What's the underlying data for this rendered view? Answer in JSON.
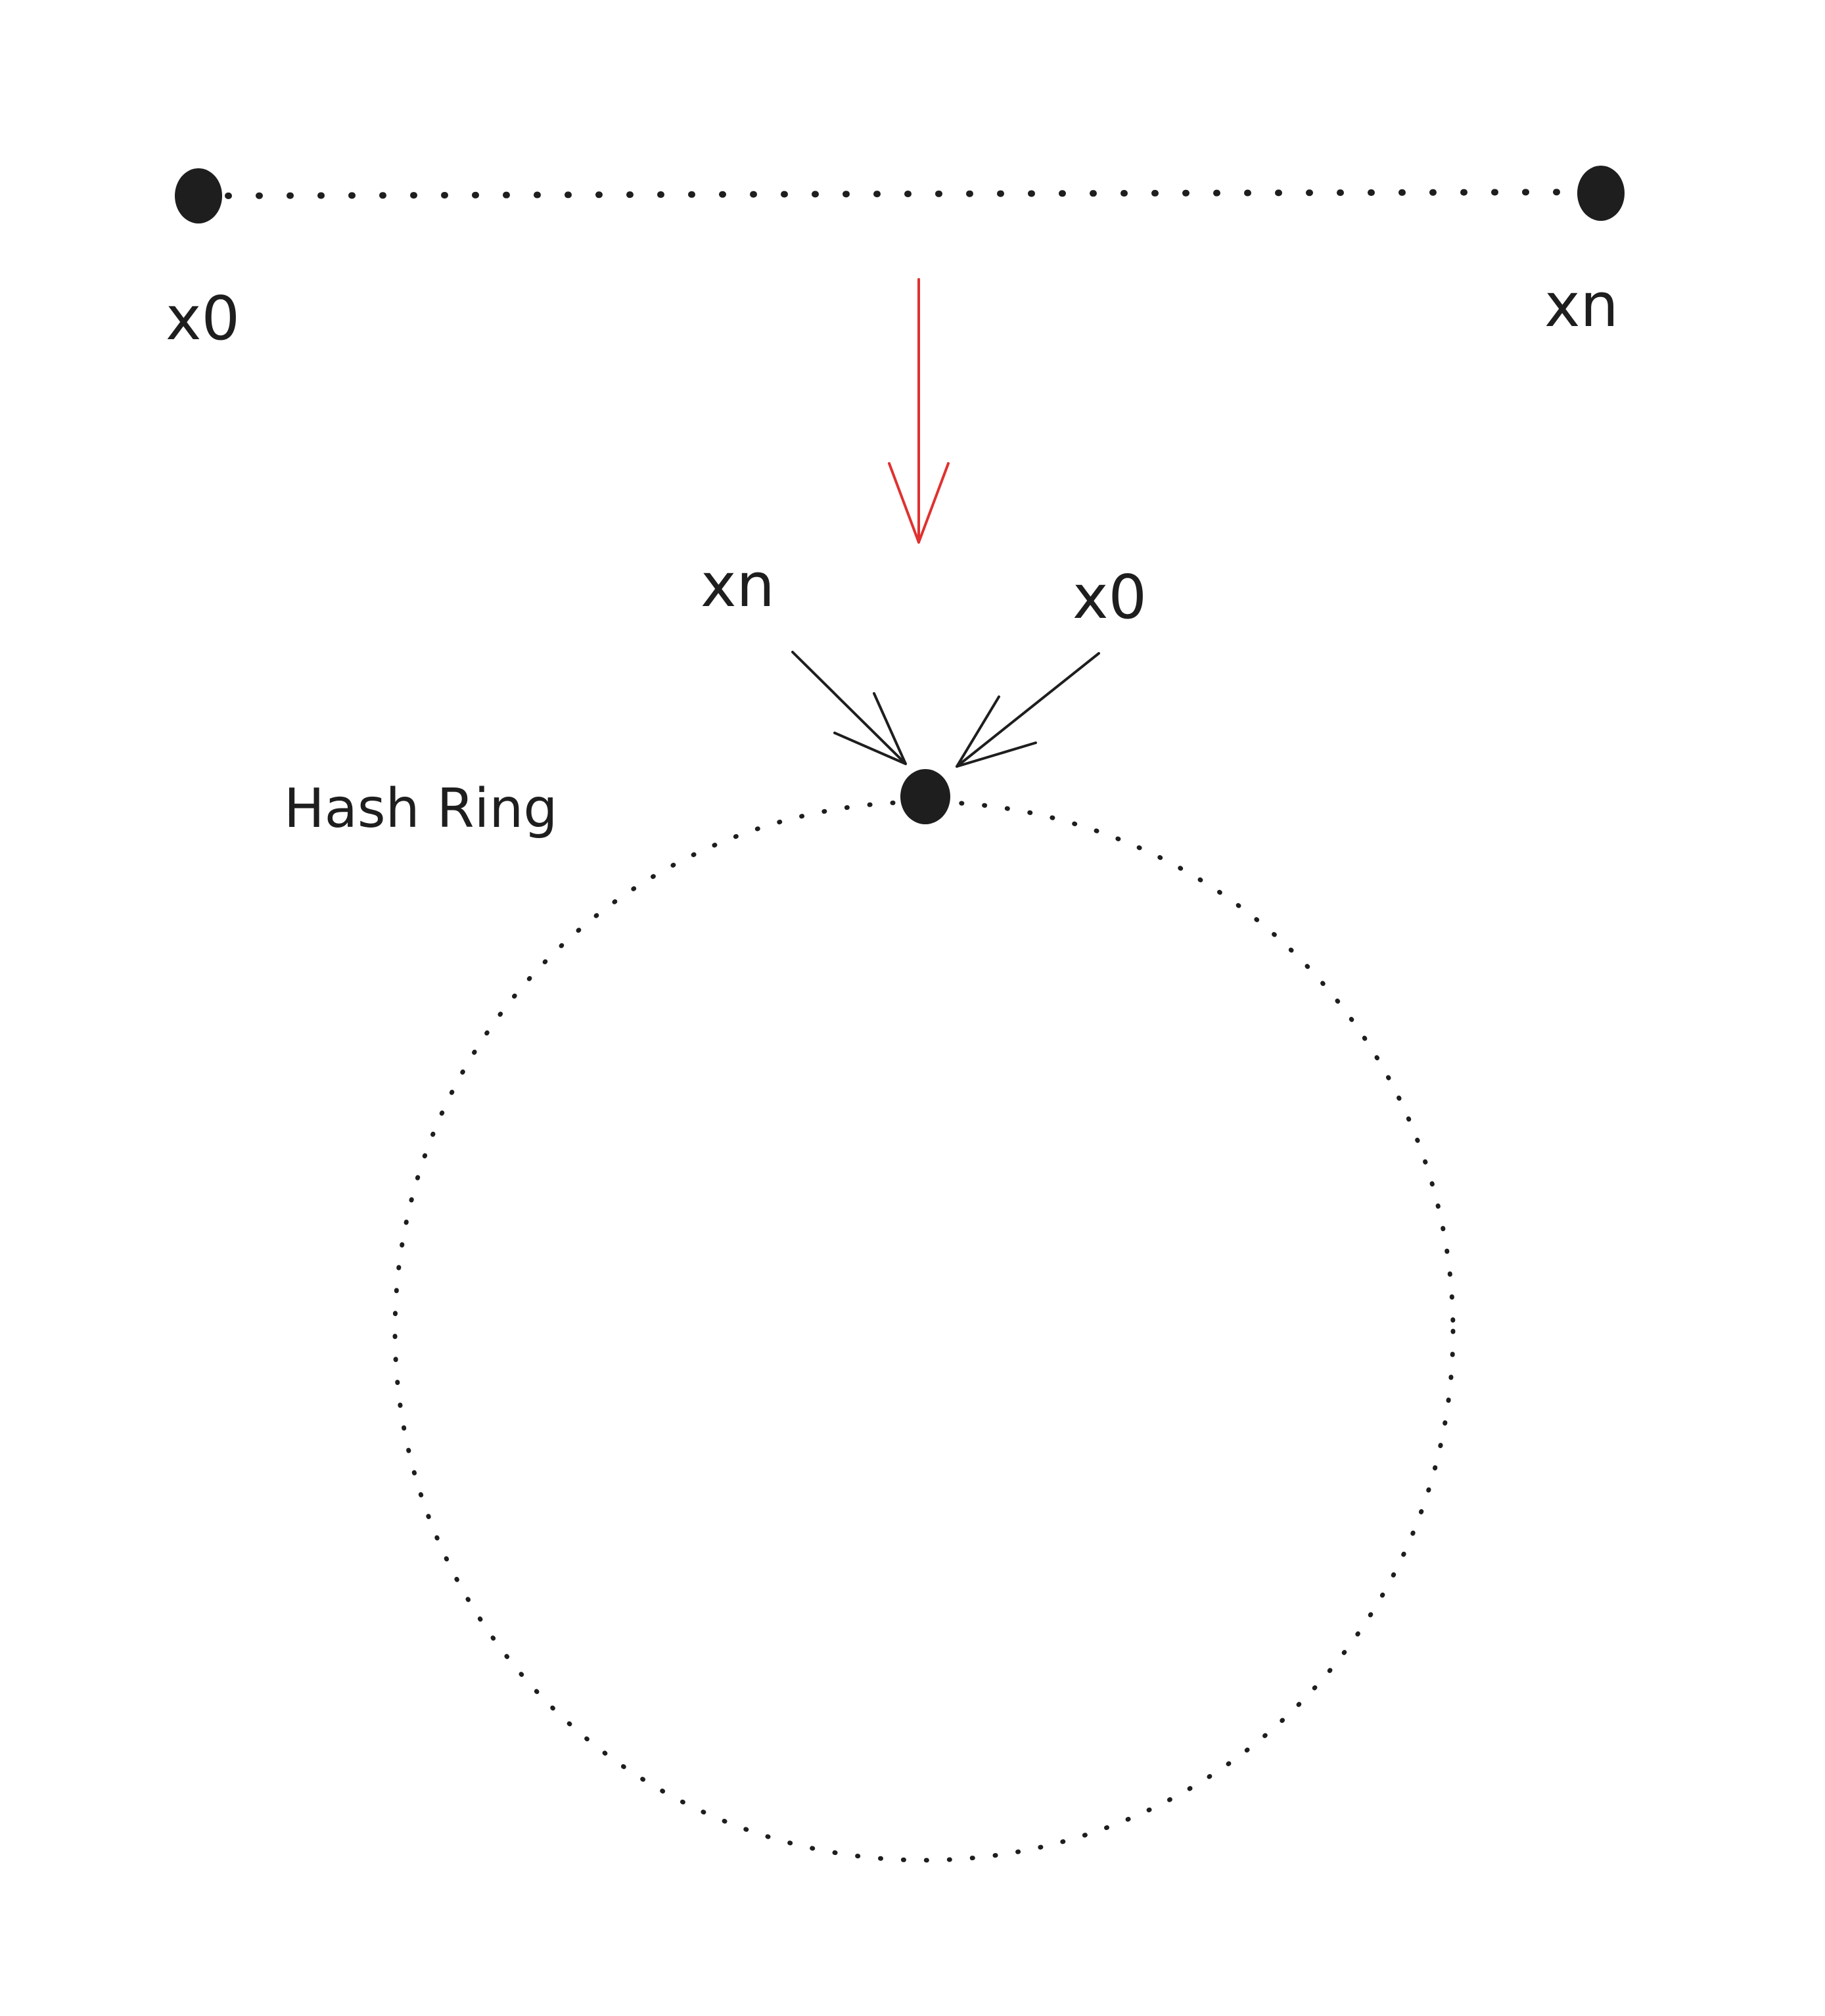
{
  "diagram": {
    "line": {
      "start_label": "x0",
      "end_label": "xn"
    },
    "ring": {
      "title": "Hash Ring",
      "left_label": "xn",
      "right_label": "x0"
    },
    "colors": {
      "ink": "#1e1e1e",
      "arrow": "#e03131",
      "background": "#ffffff"
    }
  }
}
